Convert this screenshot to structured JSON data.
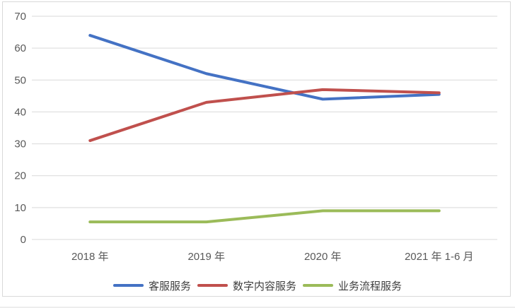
{
  "chart_data": {
    "type": "line",
    "title": "",
    "xlabel": "",
    "ylabel": "",
    "categories": [
      "2018 年",
      "2019 年",
      "2020 年",
      "2021 年 1-6 月"
    ],
    "series": [
      {
        "name": "客服服务",
        "color": "#4472C4",
        "values": [
          64,
          52,
          44,
          45.5
        ]
      },
      {
        "name": "数字内容服务",
        "color": "#C0504D",
        "values": [
          31,
          43,
          47,
          46
        ]
      },
      {
        "name": "业务流程服务",
        "color": "#9BBB59",
        "values": [
          5.5,
          5.5,
          9,
          9
        ]
      }
    ],
    "ylim": [
      0,
      70
    ],
    "yticks": [
      0,
      10,
      20,
      30,
      40,
      50,
      60,
      70
    ],
    "grid": true,
    "legend_position": "bottom",
    "line_width": 4
  },
  "style": {
    "gridline_color": "#d9d9d9",
    "axis_text_color": "#595959",
    "legend_text_color": "#3f3f3f",
    "frame_border_color": "#d9d9d9",
    "background": "#ffffff"
  }
}
